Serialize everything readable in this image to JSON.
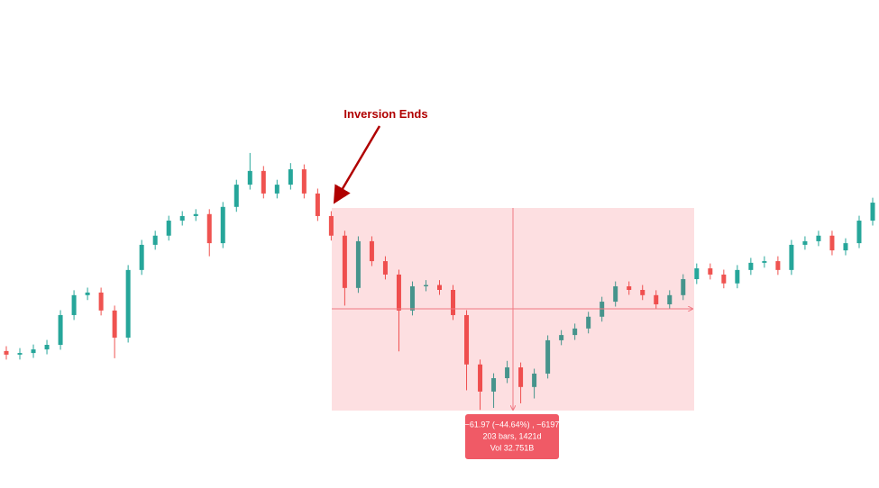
{
  "chart_data": {
    "type": "candlestick",
    "annotation": "Inversion Ends",
    "measure_labels": [
      "−61.97 (−44.64%) , −6197",
      "203 bars, 1421d",
      "Vol 32.751B"
    ],
    "up_color": "#26a69a",
    "down_color": "#ef5350",
    "ylim": [
      53.1,
      202.4
    ],
    "open": [
      95.0,
      93.9,
      94.4,
      95.5,
      96.9,
      106.0,
      112.1,
      112.9,
      107.4,
      99.1,
      119.8,
      127.5,
      130.3,
      134.9,
      136.3,
      136.9,
      128.0,
      139.1,
      145.9,
      150.1,
      143.2,
      145.9,
      150.6,
      143.2,
      136.3,
      130.3,
      114.3,
      128.6,
      122.5,
      118.4,
      107.4,
      114.8,
      115.2,
      113.7,
      106.0,
      90.9,
      82.6,
      86.7,
      90.0,
      84.0,
      88.1,
      98.3,
      99.9,
      101.9,
      105.5,
      110.1,
      114.8,
      113.7,
      112.1,
      109.3,
      112.1,
      117.0,
      120.3,
      118.4,
      115.7,
      119.8,
      122.0,
      122.5,
      119.8,
      127.5,
      128.6,
      130.3,
      125.8,
      128.0,
      134.9
    ],
    "high": [
      96.5,
      95.9,
      97.0,
      98.4,
      107.5,
      113.6,
      114.4,
      114.4,
      108.9,
      121.3,
      129.0,
      131.8,
      136.4,
      137.8,
      138.4,
      138.4,
      140.6,
      147.4,
      155.6,
      151.6,
      147.4,
      152.5,
      152.1,
      144.7,
      137.8,
      131.8,
      130.1,
      130.1,
      124.0,
      119.9,
      116.3,
      116.7,
      116.7,
      115.2,
      107.5,
      92.4,
      88.2,
      92.0,
      91.5,
      89.6,
      99.8,
      101.4,
      103.4,
      107.0,
      111.6,
      116.3,
      116.3,
      115.2,
      113.6,
      113.6,
      118.5,
      121.8,
      121.8,
      119.9,
      121.3,
      123.5,
      124.0,
      124.0,
      129.0,
      130.1,
      131.8,
      131.8,
      129.5,
      136.4,
      141.9
    ],
    "low": [
      92.4,
      92.4,
      92.9,
      94.0,
      95.4,
      104.5,
      110.6,
      105.9,
      92.8,
      97.6,
      118.3,
      126.0,
      128.8,
      133.4,
      134.8,
      124.0,
      126.5,
      137.6,
      144.4,
      141.7,
      141.7,
      144.4,
      141.7,
      134.8,
      128.8,
      108.9,
      112.8,
      121.0,
      116.9,
      94.9,
      105.9,
      113.3,
      112.2,
      104.5,
      83.0,
      77.0,
      77.6,
      85.2,
      79.0,
      80.5,
      86.6,
      96.8,
      98.4,
      100.4,
      104.0,
      108.6,
      112.2,
      110.6,
      107.8,
      107.8,
      110.6,
      115.5,
      116.9,
      114.2,
      114.2,
      118.3,
      120.5,
      118.3,
      118.3,
      126.0,
      127.1,
      124.3,
      124.3,
      126.5,
      133.4
    ],
    "close": [
      93.9,
      94.4,
      95.5,
      96.9,
      106.0,
      112.1,
      112.9,
      107.4,
      99.1,
      119.8,
      127.5,
      130.3,
      134.9,
      136.3,
      136.9,
      128.0,
      139.1,
      145.9,
      150.1,
      143.2,
      145.9,
      150.6,
      143.2,
      136.3,
      130.3,
      114.3,
      128.6,
      122.5,
      118.4,
      107.4,
      114.8,
      115.2,
      113.7,
      106.0,
      90.9,
      82.6,
      86.7,
      90.0,
      84.0,
      88.1,
      98.3,
      99.9,
      101.9,
      105.5,
      110.1,
      114.8,
      113.7,
      112.1,
      109.3,
      112.1,
      117.0,
      120.3,
      118.4,
      115.7,
      119.8,
      122.0,
      122.5,
      119.8,
      127.5,
      128.6,
      130.3,
      125.8,
      128.0,
      134.9,
      140.4
    ]
  }
}
